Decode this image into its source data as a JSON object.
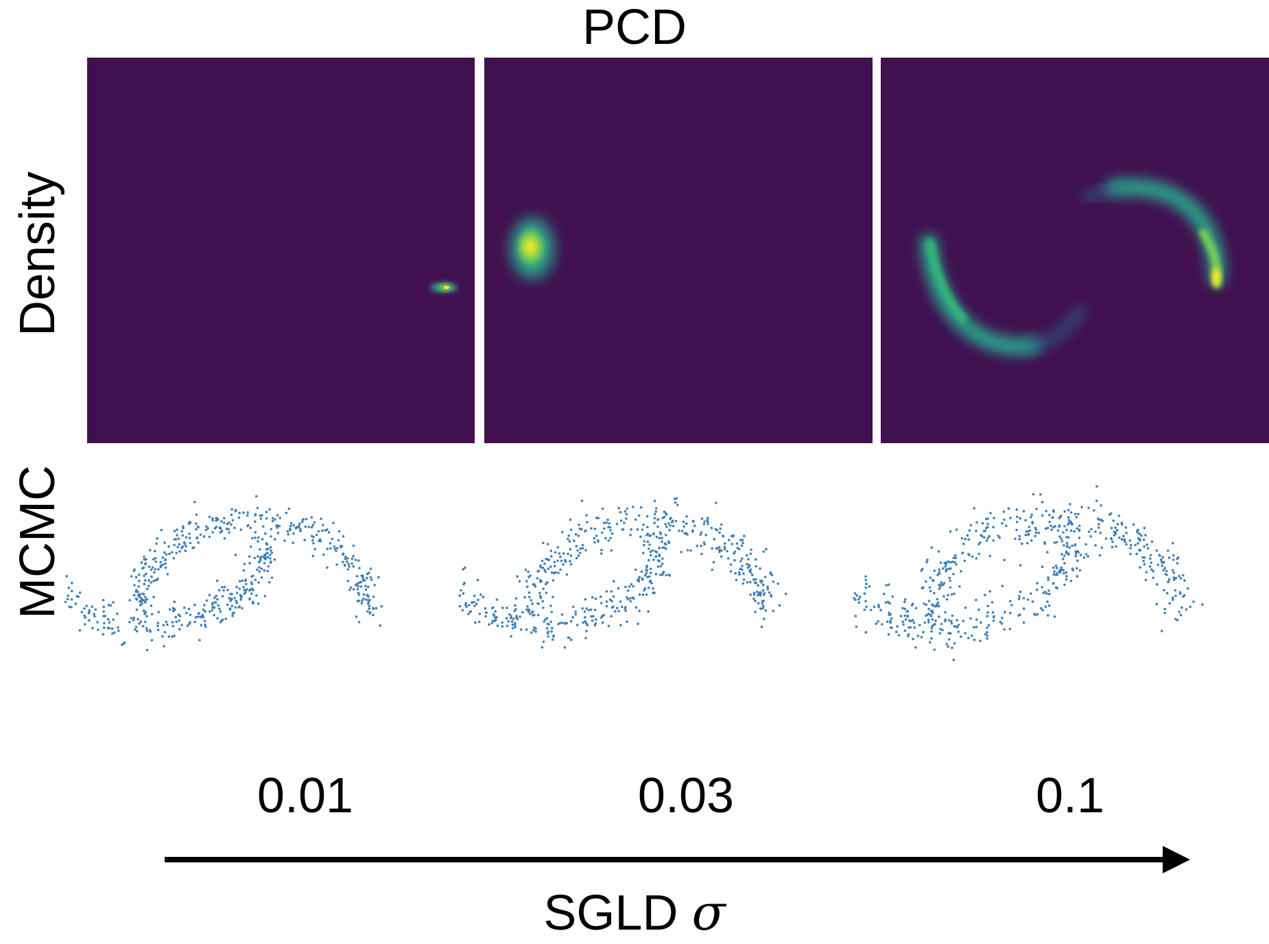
{
  "figure": {
    "title": "PCD",
    "row_labels": {
      "top": "Density",
      "bottom": "MCMC"
    },
    "x_axis": {
      "title_prefix": "SGLD ",
      "title_symbol": "σ"
    },
    "sigma_values": [
      "0.01",
      "0.03",
      "0.1"
    ]
  },
  "colors": {
    "density_background": "#40104f",
    "density_mid": "#2a9c89",
    "density_high": "#fde725",
    "scatter_points": "#3f7fb5",
    "arrow": "#000000"
  },
  "icons": {
    "arrow": "right-arrow-icon"
  }
}
